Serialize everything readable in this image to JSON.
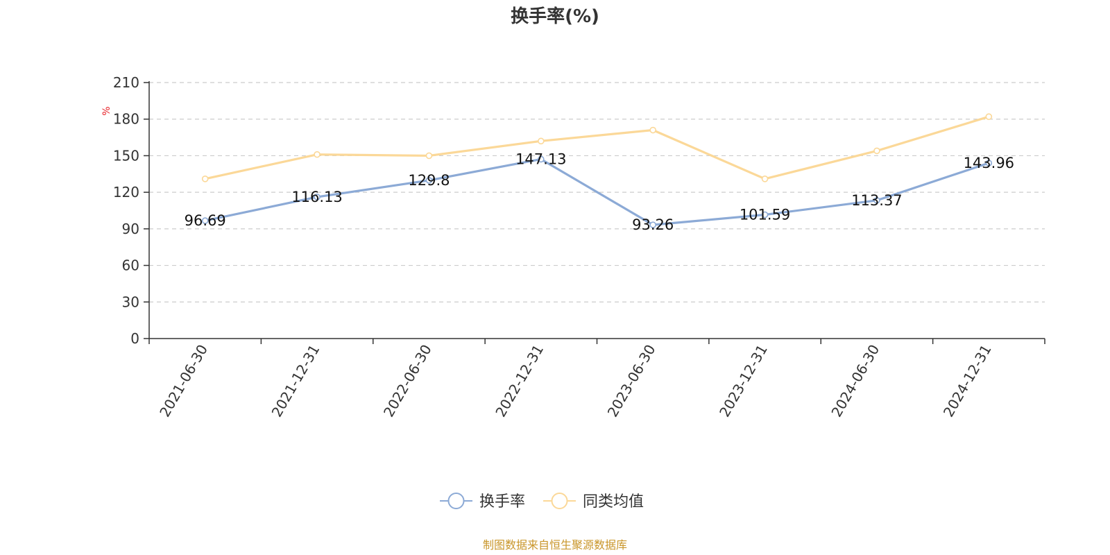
{
  "chart_data": {
    "type": "line",
    "title": "换手率(%)",
    "ylabel": "%",
    "xlabel": "",
    "ylim": [
      0,
      210
    ],
    "yticks": [
      0,
      30,
      60,
      90,
      120,
      150,
      180,
      210
    ],
    "grid": true,
    "legend_position": "bottom-center",
    "categories": [
      "2021-06-30",
      "2021-12-31",
      "2022-06-30",
      "2022-12-31",
      "2023-06-30",
      "2023-12-31",
      "2024-06-30",
      "2024-12-31"
    ],
    "series": [
      {
        "name": "换手率",
        "color": "#8caad6",
        "values": [
          96.69,
          116.13,
          129.8,
          147.13,
          93.26,
          101.59,
          113.37,
          143.96
        ],
        "data_labels": [
          "96.69",
          "116.13",
          "129.8",
          "147.13",
          "93.26",
          "101.59",
          "113.37",
          "143.96"
        ]
      },
      {
        "name": "同类均值",
        "color": "#fbd898",
        "values": [
          131,
          151,
          150,
          162,
          171,
          131,
          154,
          182
        ]
      }
    ]
  },
  "source": "制图数据来自恒生聚源数据库",
  "colors": {
    "axis": "#333333",
    "grid": "#cccccc",
    "unit": "#e8232a",
    "source": "#c9962a"
  }
}
